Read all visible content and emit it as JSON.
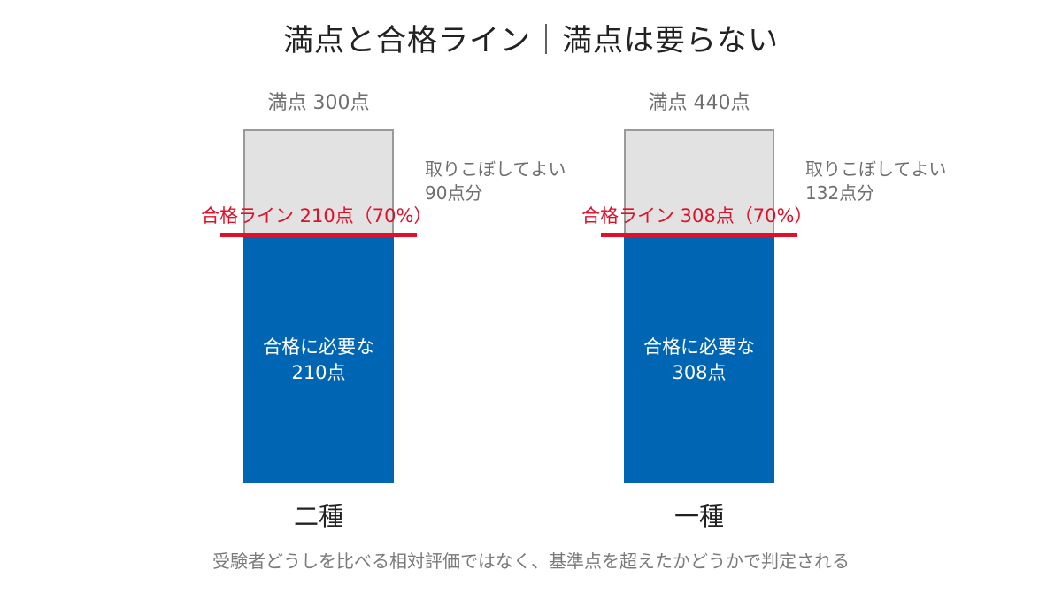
{
  "chart_data": {
    "type": "bar",
    "title": "満点と合格ライン｜満点は要らない",
    "categories": [
      "二種",
      "一種"
    ],
    "series": [
      {
        "values": [
          210,
          308
        ],
        "color": "#0066b3"
      },
      {
        "values": [
          90,
          132
        ],
        "color": "#e2e2e2"
      }
    ],
    "full_marks": [
      300,
      440
    ],
    "pass_ratio": 0.7,
    "full_mark_labels": [
      "満点 300点",
      "満点 440点"
    ],
    "pass_line_labels": [
      "合格ライン 210点（70%）",
      "合格ライン 308点（70%）"
    ],
    "allowed_drop_labels": [
      [
        "取りこぼしてよい",
        "90点分"
      ],
      [
        "取りこぼしてよい",
        "132点分"
      ]
    ],
    "required_labels": [
      [
        "合格に必要な",
        "210点"
      ],
      [
        "合格に必要な",
        "308点"
      ]
    ],
    "pass_line_color": "#e0102a"
  },
  "footnote": "受験者どうしを比べる相対評価ではなく、基準点を超えたかどうかで判定される"
}
